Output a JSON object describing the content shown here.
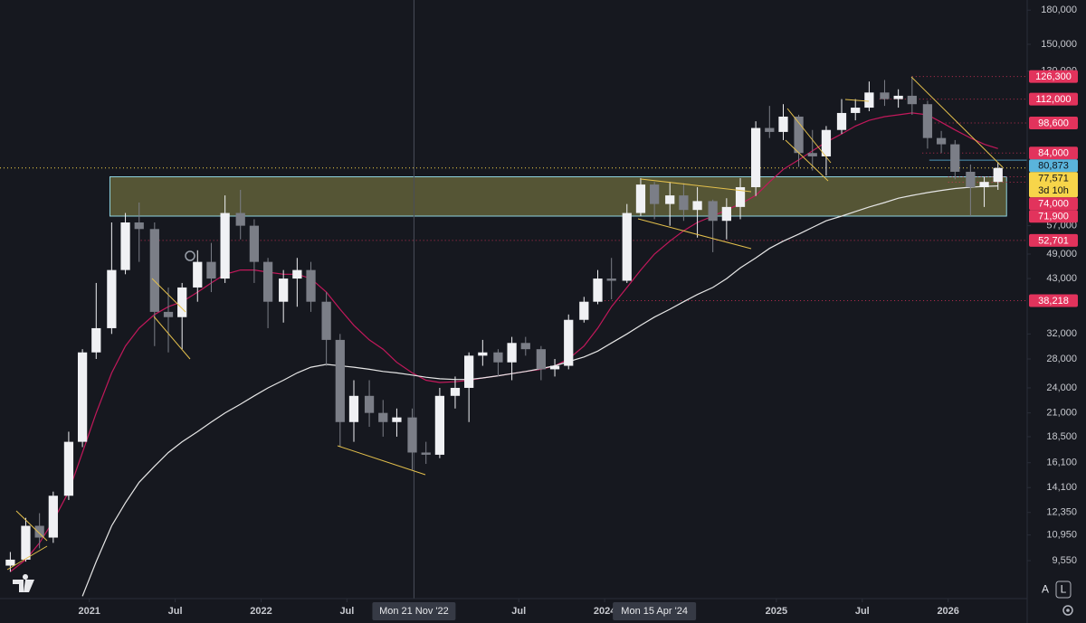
{
  "chart_data": {
    "type": "candlestick",
    "log_scale": true,
    "xlim": [
      2020.48,
      2026.46
    ],
    "ylim": [
      7800,
      190000
    ],
    "xticks": [
      {
        "value": 2021,
        "label": "2021"
      },
      {
        "value": 2021.5,
        "label": "Jul"
      },
      {
        "value": 2022,
        "label": "2022"
      },
      {
        "value": 2022.5,
        "label": "Jul"
      },
      {
        "value": 2023.5,
        "label": "Jul"
      },
      {
        "value": 2024,
        "label": "2024"
      },
      {
        "value": 2025,
        "label": "2025"
      },
      {
        "value": 2025.5,
        "label": "Jul"
      },
      {
        "value": 2026,
        "label": "2026"
      }
    ],
    "yticks": [
      {
        "value": 180000,
        "label": "180,000"
      },
      {
        "value": 150000,
        "label": "150,000"
      },
      {
        "value": 130000,
        "label": "130,000"
      },
      {
        "value": 57000,
        "label": "57,000"
      },
      {
        "value": 49000,
        "label": "49,000"
      },
      {
        "value": 43000,
        "label": "43,000"
      },
      {
        "value": 32000,
        "label": "32,000"
      },
      {
        "value": 28000,
        "label": "28,000"
      },
      {
        "value": 24000,
        "label": "24,000"
      },
      {
        "value": 21000,
        "label": "21,000"
      },
      {
        "value": 18500,
        "label": "18,500"
      },
      {
        "value": 16100,
        "label": "16,100"
      },
      {
        "value": 14100,
        "label": "14,100"
      },
      {
        "value": 12350,
        "label": "12,350"
      },
      {
        "value": 10950,
        "label": "10,950"
      },
      {
        "value": 9550,
        "label": "9,550"
      }
    ],
    "up_color": "#f0f1f4",
    "down_color": "#7b7e87",
    "x": [
      2020.54,
      2020.63,
      2020.71,
      2020.79,
      2020.88,
      2020.96,
      2021.04,
      2021.13,
      2021.21,
      2021.29,
      2021.38,
      2021.46,
      2021.54,
      2021.63,
      2021.71,
      2021.79,
      2021.88,
      2021.96,
      2022.04,
      2022.13,
      2022.21,
      2022.29,
      2022.38,
      2022.46,
      2022.54,
      2022.63,
      2022.71,
      2022.79,
      2022.88,
      2022.96,
      2023.04,
      2023.13,
      2023.21,
      2023.29,
      2023.38,
      2023.46,
      2023.54,
      2023.63,
      2023.71,
      2023.79,
      2023.88,
      2023.96,
      2024.04,
      2024.13,
      2024.21,
      2024.29,
      2024.38,
      2024.46,
      2024.54,
      2024.63,
      2024.71,
      2024.79,
      2024.88,
      2024.96,
      2025.04,
      2025.13,
      2025.21,
      2025.29,
      2025.38,
      2025.46,
      2025.54,
      2025.63,
      2025.71,
      2025.79,
      2025.88,
      2025.96,
      2026.04,
      2026.13,
      2026.21,
      2026.29
    ],
    "open": [
      9300,
      9600,
      11500,
      10800,
      13500,
      18000,
      29000,
      33000,
      45000,
      58000,
      56000,
      36000,
      35000,
      41000,
      47000,
      43000,
      61000,
      57000,
      47000,
      38000,
      43000,
      45000,
      38000,
      31000,
      20000,
      23000,
      21000,
      20000,
      20500,
      17000,
      16800,
      23000,
      24000,
      28500,
      29000,
      27500,
      30500,
      29500,
      26500,
      27000,
      34500,
      38000,
      43000,
      42500,
      61000,
      71000,
      64000,
      67000,
      62000,
      65000,
      58500,
      63000,
      70000,
      96000,
      94000,
      102000,
      84000,
      82500,
      95000,
      104000,
      107000,
      116000,
      112000,
      114000,
      109000,
      91000,
      88000,
      76000,
      70000,
      72000
    ],
    "high": [
      10000,
      12000,
      12300,
      13800,
      19000,
      29500,
      42000,
      58000,
      61000,
      64500,
      58000,
      41000,
      42000,
      50000,
      52000,
      67000,
      69000,
      59000,
      48000,
      45000,
      48000,
      47000,
      40000,
      32000,
      25000,
      25000,
      22500,
      21500,
      21500,
      18000,
      24000,
      25500,
      29000,
      31000,
      29500,
      31500,
      31500,
      30000,
      28000,
      35500,
      39000,
      45000,
      48000,
      64000,
      73500,
      72000,
      72000,
      71500,
      70000,
      65500,
      66000,
      73500,
      99500,
      108000,
      109000,
      103000,
      95000,
      97000,
      112000,
      112000,
      123000,
      124000,
      118000,
      126300,
      111000,
      94500,
      90000,
      79000,
      74000,
      80000
    ],
    "low": [
      9000,
      9500,
      10200,
      10500,
      13200,
      17500,
      28000,
      32000,
      44000,
      47000,
      30000,
      29000,
      29500,
      38000,
      40000,
      42000,
      53000,
      42000,
      33000,
      34000,
      37000,
      36000,
      27000,
      17500,
      18000,
      19500,
      18500,
      18500,
      15500,
      16000,
      16500,
      21500,
      20000,
      27000,
      25500,
      25000,
      28500,
      25000,
      25500,
      26500,
      34000,
      37500,
      38500,
      42000,
      60000,
      59000,
      57000,
      58500,
      53500,
      49500,
      53000,
      59000,
      66800,
      91000,
      90000,
      78000,
      76500,
      74500,
      93000,
      100000,
      105000,
      108000,
      107000,
      103000,
      86000,
      84000,
      73000,
      60000,
      63000,
      69000
    ],
    "close": [
      9600,
      11500,
      10800,
      13500,
      18000,
      29000,
      33000,
      45000,
      58000,
      56000,
      36000,
      35000,
      41000,
      47000,
      43000,
      61000,
      57000,
      47000,
      38000,
      43000,
      45000,
      38000,
      31000,
      20000,
      23000,
      21000,
      20000,
      20500,
      17000,
      16800,
      23000,
      24000,
      28500,
      29000,
      27500,
      30500,
      29500,
      26500,
      27000,
      34500,
      38000,
      43000,
      42500,
      61000,
      71000,
      64000,
      67000,
      62000,
      65000,
      58500,
      63000,
      70000,
      96000,
      94000,
      102000,
      84000,
      82500,
      95000,
      104000,
      107000,
      116000,
      112000,
      114000,
      109000,
      91000,
      88000,
      76000,
      70000,
      72000,
      77571
    ],
    "moving_averages": [
      {
        "color": "#c2185b",
        "values": [
          9000,
          9600,
          10500,
          11800,
          13800,
          17000,
          21000,
          26000,
          30000,
          33000,
          35500,
          37000,
          38000,
          40000,
          42000,
          44000,
          45000,
          45000,
          44500,
          44000,
          44000,
          43000,
          40000,
          36500,
          33500,
          31000,
          29500,
          27500,
          26000,
          25000,
          24700,
          24800,
          25000,
          25300,
          25600,
          25900,
          26200,
          26500,
          27000,
          28000,
          30000,
          33000,
          37000,
          41000,
          45000,
          49000,
          52500,
          55500,
          58000,
          60000,
          62000,
          64000,
          67000,
          72000,
          77000,
          81000,
          85000,
          89000,
          93000,
          97000,
          100000,
          102000,
          103000,
          104000,
          103000,
          99000,
          95000,
          91000,
          88000,
          86000
        ]
      },
      {
        "color": "#e6e6e6",
        "values": [
          null,
          null,
          null,
          null,
          null,
          7900,
          9500,
          11500,
          13000,
          14500,
          15800,
          17000,
          18000,
          19000,
          20000,
          21000,
          22000,
          23000,
          24000,
          25000,
          26000,
          26800,
          27200,
          27000,
          26800,
          26500,
          26200,
          26000,
          25700,
          25400,
          25200,
          25100,
          25100,
          25300,
          25600,
          25900,
          26200,
          26600,
          27000,
          27600,
          28300,
          29200,
          30500,
          32000,
          33500,
          35000,
          36500,
          38000,
          39500,
          41000,
          43000,
          45500,
          48000,
          50500,
          52500,
          54500,
          56500,
          58500,
          60000,
          61500,
          63000,
          64500,
          66000,
          67000,
          68000,
          68800,
          69500,
          70000,
          70300,
          70500
        ]
      }
    ],
    "zone": {
      "x": [
        2021.12,
        2026.34
      ],
      "y": [
        60000,
        74000
      ],
      "color": "#6b6a3e",
      "border": "#8fd3e0"
    },
    "price_lines": [
      {
        "value": 126300,
        "label": "126,300",
        "color": "#e2335c",
        "x0": 2025.79,
        "style": "dotted"
      },
      {
        "value": 112000,
        "label": "112,000",
        "color": "#e2335c",
        "x0": 2025.6,
        "style": "dotted"
      },
      {
        "value": 98600,
        "label": "98,600",
        "color": "#e2335c",
        "x0": 2025.9,
        "style": "dotted"
      },
      {
        "value": 84000,
        "label": "84,000",
        "color": "#e2335c",
        "x0": 2025.85,
        "style": "dotted"
      },
      {
        "value": 80873,
        "label": "80,873",
        "color": "#5ab4dc",
        "x0": 2025.89,
        "style": "solid"
      },
      {
        "value": 74000,
        "label": "74,000",
        "color": "#e2335c",
        "x0": 2026.0,
        "style": "dotted"
      },
      {
        "value": 71900,
        "label": "71,900",
        "color": "#e2335c",
        "x0": 2026.0,
        "style": "dotted"
      },
      {
        "value": 52701,
        "label": "52,701",
        "color": "#e2335c",
        "x0": 2021.3,
        "style": "dotted"
      },
      {
        "value": 38218,
        "label": "38,218",
        "color": "#e2335c",
        "x0": 2024.0,
        "style": "dotted"
      }
    ],
    "last_price": {
      "value": 77571,
      "label": "77,571",
      "countdown": "3d 10h",
      "color": "#f7d54a"
    },
    "crosshair": [
      {
        "value": 2022.89,
        "label": "Mon 21 Nov '22"
      },
      {
        "value": 2024.29,
        "label": "Mon 15 Apr '24"
      }
    ],
    "buttons": [
      "A",
      "L"
    ]
  }
}
